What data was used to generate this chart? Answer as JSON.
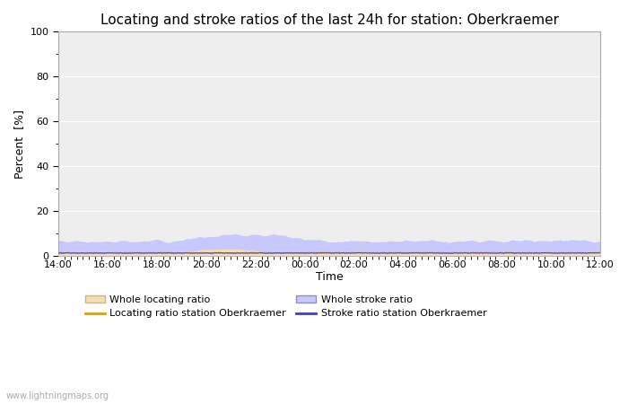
{
  "title": "Locating and stroke ratios of the last 24h for station: Oberkraemer",
  "xlabel": "Time",
  "ylabel": "Percent  [%]",
  "ylim": [
    0,
    100
  ],
  "yticks": [
    0,
    20,
    40,
    60,
    80,
    100
  ],
  "yticks_minor": [
    10,
    30,
    50,
    70,
    90
  ],
  "x_labels": [
    "14:00",
    "16:00",
    "18:00",
    "20:00",
    "22:00",
    "00:00",
    "02:00",
    "04:00",
    "06:00",
    "08:00",
    "10:00",
    "12:00"
  ],
  "background_color": "#ffffff",
  "plot_bg_color": "#eeeeee",
  "grid_color": "#ffffff",
  "watermark": "www.lightningmaps.org",
  "whole_locating_color": "#f5deb3",
  "whole_locating_edge": "#d4b483",
  "whole_stroke_color": "#c8c8ff",
  "whole_stroke_edge": "#9090c0",
  "locating_line_color": "#d4a020",
  "stroke_line_color": "#4040c0",
  "title_fontsize": 11,
  "axis_fontsize": 9,
  "tick_fontsize": 8,
  "n_points": 288
}
